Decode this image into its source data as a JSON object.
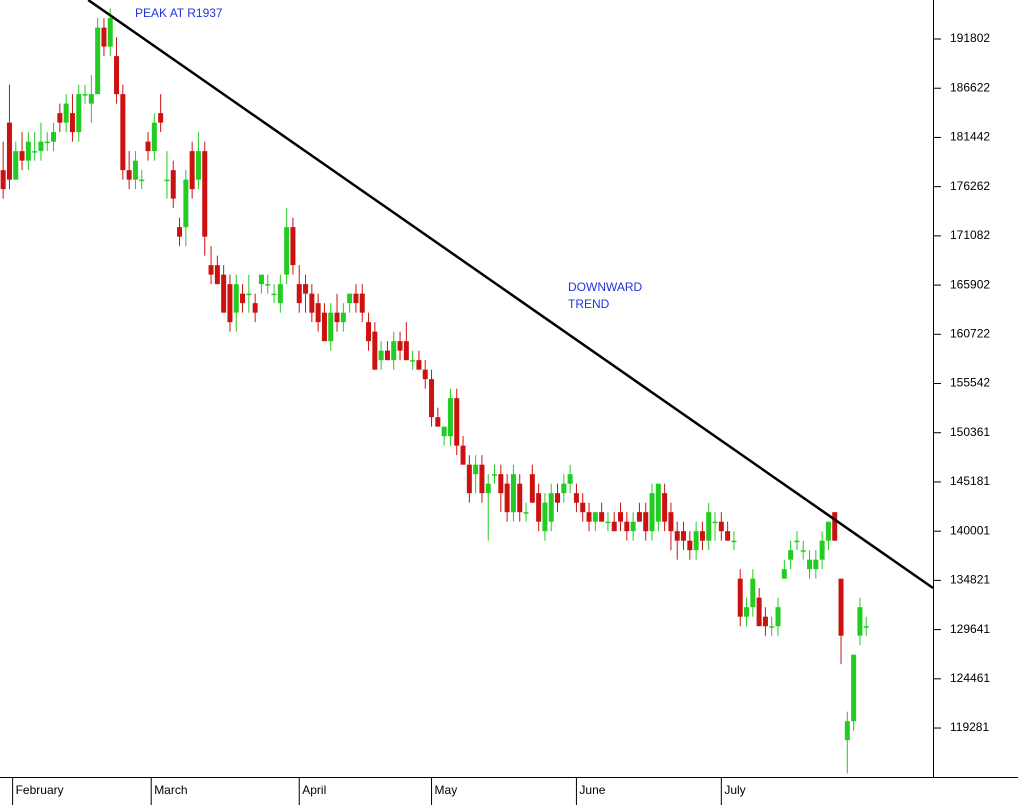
{
  "chart_data": {
    "type": "candlestick",
    "annotations": [
      "PEAK AT R1937",
      "DOWNWARD",
      "TREND"
    ],
    "up_color": "#22cc22",
    "down_color": "#cc1111",
    "xlim": [
      -0.5,
      147.6
    ],
    "xticks": [
      {
        "value": 1.5,
        "label": "February"
      },
      {
        "value": 23.5,
        "label": "March"
      },
      {
        "value": 47,
        "label": "April"
      },
      {
        "value": 68,
        "label": "May"
      },
      {
        "value": 91,
        "label": "June"
      },
      {
        "value": 114,
        "label": "July"
      }
    ],
    "ylim": [
      114127,
      195907
    ],
    "yticks": [
      191802,
      186622,
      181442,
      176262,
      171082,
      165902,
      160722,
      155542,
      150361,
      145181,
      140001,
      134821,
      129641,
      124461,
      119281
    ],
    "open": [
      178000,
      183000,
      177000,
      180000,
      179000,
      180000,
      180000,
      181000,
      181000,
      184000,
      183000,
      184000,
      182000,
      186000,
      185000,
      186000,
      193000,
      191000,
      190000,
      186000,
      178000,
      177000,
      177000,
      181000,
      180000,
      184000,
      177000,
      178000,
      172000,
      172000,
      180000,
      177000,
      180000,
      168000,
      168000,
      167000,
      166000,
      163000,
      165000,
      165000,
      164000,
      166000,
      166000,
      165000,
      164000,
      167000,
      172000,
      166000,
      166000,
      165000,
      164000,
      163000,
      160000,
      163000,
      162000,
      164000,
      165000,
      165000,
      162000,
      161000,
      158000,
      159000,
      158000,
      160000,
      160000,
      158000,
      158000,
      157000,
      156000,
      152000,
      150000,
      150000,
      154000,
      149000,
      147000,
      146000,
      147000,
      144000,
      146000,
      146000,
      145000,
      142000,
      145000,
      142000,
      146000,
      144000,
      140000,
      141000,
      144000,
      144000,
      145000,
      144000,
      143000,
      142000,
      141000,
      142000,
      141000,
      141000,
      142000,
      141000,
      140000,
      142000,
      142000,
      140000,
      141000,
      144000,
      142000,
      140000,
      140000,
      139000,
      138000,
      140000,
      139000,
      141000,
      141000,
      140000,
      139000,
      135000,
      131000,
      132000,
      133000,
      131000,
      130000,
      130000,
      135000,
      137000,
      139000,
      138000,
      136000,
      136000,
      137000,
      139000,
      142000,
      135000,
      118000,
      120000,
      129000,
      130000
    ],
    "high": [
      181000,
      187000,
      181000,
      182000,
      182000,
      182000,
      183000,
      182000,
      183000,
      185000,
      186000,
      186000,
      187000,
      187000,
      188000,
      194000,
      194000,
      195000,
      192000,
      187000,
      180000,
      180000,
      178000,
      182000,
      184000,
      186000,
      180000,
      179000,
      173000,
      178000,
      181000,
      182000,
      181000,
      170000,
      169000,
      168000,
      167000,
      167000,
      166000,
      167000,
      165000,
      167000,
      167000,
      166000,
      167000,
      174000,
      173000,
      168000,
      167000,
      166000,
      165000,
      164000,
      164000,
      165000,
      164000,
      165000,
      166000,
      166000,
      163000,
      162000,
      160000,
      160000,
      161000,
      161000,
      162000,
      159000,
      159000,
      158000,
      157000,
      153000,
      151000,
      155000,
      155000,
      150000,
      148000,
      148000,
      148000,
      146000,
      147000,
      147000,
      146000,
      147000,
      146000,
      143000,
      147000,
      145000,
      144000,
      145000,
      145000,
      146000,
      147000,
      145000,
      144000,
      143000,
      142000,
      143000,
      142000,
      142000,
      143000,
      142000,
      142000,
      143000,
      143000,
      145000,
      145000,
      145000,
      143000,
      141000,
      141000,
      140000,
      141000,
      141000,
      143000,
      142000,
      142000,
      141000,
      140000,
      136000,
      133000,
      136000,
      134000,
      132000,
      131000,
      133000,
      137000,
      139000,
      140000,
      139000,
      138000,
      138000,
      140000,
      141000,
      142000,
      135000,
      121000,
      127000,
      133000,
      131000
    ],
    "low": [
      175000,
      176000,
      177000,
      178000,
      178000,
      179000,
      179000,
      180000,
      180000,
      182000,
      182000,
      181000,
      181000,
      185000,
      183000,
      186000,
      190000,
      190000,
      185000,
      177000,
      176000,
      176000,
      176000,
      179000,
      179000,
      182000,
      175000,
      174000,
      170000,
      170000,
      175000,
      176000,
      169000,
      166000,
      166000,
      163000,
      161000,
      161000,
      163000,
      163000,
      162000,
      165000,
      165000,
      164000,
      163000,
      166000,
      167000,
      163000,
      163000,
      162000,
      161000,
      160000,
      159000,
      161000,
      161000,
      163000,
      163000,
      162000,
      159000,
      157000,
      157000,
      158000,
      157000,
      158000,
      158000,
      157000,
      157000,
      155000,
      151000,
      151000,
      149000,
      149000,
      148000,
      147000,
      143000,
      144000,
      143000,
      139000,
      145000,
      142000,
      141000,
      141000,
      141000,
      141000,
      143000,
      140000,
      139000,
      140000,
      142000,
      143000,
      144000,
      142000,
      141000,
      140000,
      140000,
      141000,
      140000,
      140000,
      140000,
      139000,
      139000,
      141000,
      139000,
      139000,
      140000,
      140000,
      138000,
      137000,
      138000,
      137000,
      137000,
      138000,
      138000,
      139000,
      139000,
      139000,
      138000,
      130000,
      130000,
      131000,
      130000,
      129000,
      129000,
      129000,
      135000,
      136000,
      138000,
      137000,
      135000,
      135000,
      136000,
      138000,
      139000,
      126000,
      114500,
      119000,
      128000,
      129000
    ],
    "close": [
      176000,
      177000,
      180000,
      179000,
      181000,
      180000,
      181000,
      181000,
      182000,
      183000,
      185000,
      182000,
      186000,
      186000,
      186000,
      193000,
      191000,
      194000,
      186000,
      178000,
      177000,
      179000,
      177000,
      180000,
      183000,
      183000,
      177000,
      175000,
      171000,
      177000,
      176000,
      180000,
      171000,
      167000,
      166000,
      163000,
      162000,
      166000,
      164000,
      165000,
      163000,
      167000,
      166000,
      165000,
      166000,
      172000,
      168000,
      164000,
      165000,
      163000,
      162000,
      160000,
      163000,
      162000,
      163000,
      165000,
      164000,
      163000,
      160000,
      157000,
      159000,
      158000,
      160000,
      159000,
      158000,
      158000,
      157000,
      156000,
      152000,
      151000,
      151000,
      154000,
      149000,
      147000,
      144000,
      147000,
      144000,
      145000,
      146000,
      144000,
      142000,
      146000,
      142000,
      142000,
      143000,
      141000,
      143000,
      144000,
      143000,
      145000,
      146000,
      143000,
      142000,
      141000,
      142000,
      141000,
      141000,
      140000,
      141000,
      140000,
      141000,
      141000,
      140000,
      144000,
      145000,
      141000,
      140000,
      139000,
      139000,
      138000,
      140000,
      139000,
      142000,
      141000,
      140000,
      139000,
      139000,
      131000,
      132000,
      135000,
      130000,
      130000,
      130000,
      132000,
      136000,
      138000,
      139000,
      138000,
      137000,
      137000,
      139000,
      141000,
      139000,
      129000,
      120000,
      127000,
      132000,
      130000
    ],
    "trend_line": {
      "x": [
        13.5,
        147.6
      ],
      "y": [
        195907,
        134022
      ]
    }
  }
}
